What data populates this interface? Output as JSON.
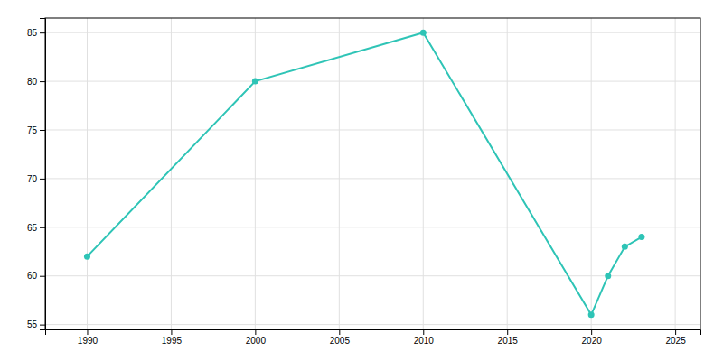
{
  "chart_data": {
    "type": "line",
    "x": [
      1990,
      2000,
      2010,
      2020,
      2021,
      2022,
      2023
    ],
    "values": [
      62,
      80,
      85,
      56,
      60,
      63,
      64
    ],
    "color": "#2ec4b6",
    "marker": "circle",
    "xlim": [
      1987.5,
      2026.5
    ],
    "ylim": [
      54.5,
      86.5
    ],
    "xticks": [
      1990,
      1995,
      2000,
      2005,
      2010,
      2015,
      2020,
      2025
    ],
    "yticks": [
      55,
      60,
      65,
      70,
      75,
      80,
      85
    ],
    "grid": true
  }
}
